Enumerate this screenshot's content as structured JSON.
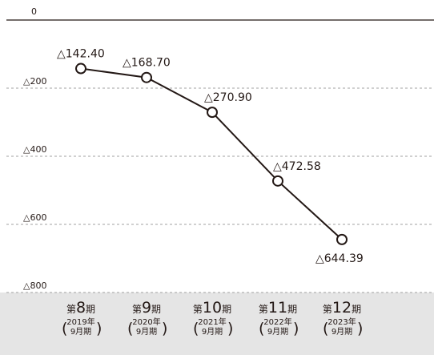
{
  "chart_data": {
    "type": "line",
    "categories": [
      {
        "prefix": "第",
        "number": "8",
        "suffix": "期",
        "year": "2019年",
        "month": "9月期"
      },
      {
        "prefix": "第",
        "number": "9",
        "suffix": "期",
        "year": "2020年",
        "month": "9月期"
      },
      {
        "prefix": "第",
        "number": "10",
        "suffix": "期",
        "year": "2021年",
        "month": "9月期"
      },
      {
        "prefix": "第",
        "number": "11",
        "suffix": "期",
        "year": "2022年",
        "month": "9月期"
      },
      {
        "prefix": "第",
        "number": "12",
        "suffix": "期",
        "year": "2023年",
        "month": "9月期"
      }
    ],
    "values": [
      -142.4,
      -168.7,
      -270.9,
      -472.58,
      -644.39
    ],
    "data_labels": [
      "△142.40",
      "△168.70",
      "△270.90",
      "△472.58",
      "△644.39"
    ],
    "yticks": [
      {
        "value": 0,
        "label": "0"
      },
      {
        "value": -200,
        "label": "△200"
      },
      {
        "value": -400,
        "label": "△400"
      },
      {
        "value": -600,
        "label": "△600"
      },
      {
        "value": -800,
        "label": "△800"
      }
    ],
    "ylim": [
      -800,
      0
    ],
    "grid": true,
    "colors": {
      "line": "#231815",
      "marker_fill": "#ffffff",
      "grid": "#a0a0a0",
      "category_band": "#e5e5e5"
    }
  }
}
